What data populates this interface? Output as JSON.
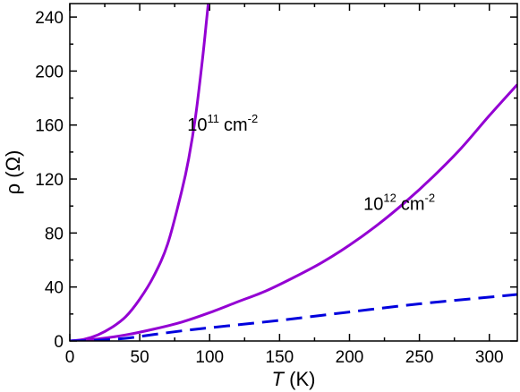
{
  "chart_data": {
    "type": "line",
    "title": "",
    "xlabel": {
      "symbol": "T",
      "unit": "(K)"
    },
    "ylabel": "ρ (Ω)",
    "xlim": [
      0,
      320
    ],
    "ylim": [
      0,
      250
    ],
    "xticks": [
      0,
      50,
      100,
      150,
      200,
      250,
      300
    ],
    "yticks": [
      0,
      40,
      80,
      120,
      160,
      200,
      240
    ],
    "grid": false,
    "series": [
      {
        "color": "#9400d3",
        "dash": "solid",
        "points": [
          [
            0,
            0
          ],
          [
            10,
            1.2
          ],
          [
            20,
            4.5
          ],
          [
            30,
            10
          ],
          [
            40,
            18
          ],
          [
            50,
            31
          ],
          [
            60,
            48
          ],
          [
            70,
            72
          ],
          [
            80,
            111
          ],
          [
            85,
            135
          ],
          [
            90,
            167
          ],
          [
            95,
            210
          ],
          [
            98,
            240
          ],
          [
            100,
            260
          ]
        ]
      },
      {
        "color": "#9400d3",
        "dash": "solid",
        "points": [
          [
            0,
            0
          ],
          [
            20,
            1.5
          ],
          [
            40,
            4.5
          ],
          [
            60,
            8.8
          ],
          [
            80,
            14
          ],
          [
            100,
            21
          ],
          [
            120,
            29
          ],
          [
            140,
            37
          ],
          [
            160,
            47
          ],
          [
            180,
            58
          ],
          [
            200,
            71
          ],
          [
            220,
            86
          ],
          [
            240,
            103
          ],
          [
            260,
            122
          ],
          [
            280,
            143
          ],
          [
            300,
            167
          ],
          [
            320,
            190
          ]
        ]
      },
      {
        "color": "#0000dd",
        "dash": "dashed",
        "points": [
          [
            0,
            0
          ],
          [
            20,
            0.5
          ],
          [
            40,
            2
          ],
          [
            60,
            4.8
          ],
          [
            80,
            7.5
          ],
          [
            100,
            9.8
          ],
          [
            150,
            15.3
          ],
          [
            200,
            21.5
          ],
          [
            250,
            27.5
          ],
          [
            300,
            32.5
          ],
          [
            320,
            34.5
          ]
        ]
      }
    ],
    "annotations": [
      {
        "base": "10",
        "exp": "11",
        "unit": "cm",
        "unit_exp": "-2",
        "x": 84,
        "y": 156
      },
      {
        "base": "10",
        "exp": "12",
        "unit": "cm",
        "unit_exp": "-2",
        "x": 210,
        "y": 97
      }
    ]
  }
}
